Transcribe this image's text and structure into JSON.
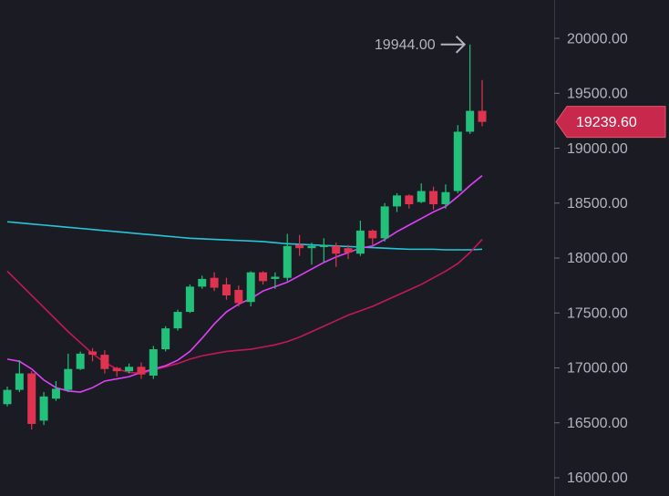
{
  "chart_data": {
    "type": "candlestick",
    "ylim": [
      15834,
      20349
    ],
    "yticks": [
      {
        "value": 20000,
        "label": "20000.00"
      },
      {
        "value": 19500,
        "label": "19500.00"
      },
      {
        "value": 19000,
        "label": "19000.00"
      },
      {
        "value": 18500,
        "label": "18500.00"
      },
      {
        "value": 18000,
        "label": "18000.00"
      },
      {
        "value": 17500,
        "label": "17500.00"
      },
      {
        "value": 17000,
        "label": "17000.00"
      },
      {
        "value": 16500,
        "label": "16500.00"
      },
      {
        "value": 16000,
        "label": "16000.00"
      }
    ],
    "up_color": "#22c07a",
    "down_color": "#e0334f",
    "open": [
      16670,
      16800,
      16950,
      16520,
      16720,
      16800,
      16990,
      17150,
      17120,
      17000,
      16970,
      17010,
      16930,
      17170,
      17360,
      17510,
      17740,
      17820,
      17760,
      17710,
      17600,
      17870,
      17810,
      17820,
      18120,
      18090,
      18100,
      18110,
      18090,
      18040,
      18250,
      18180,
      18470,
      18570,
      18510,
      18610,
      18490,
      18610,
      19150,
      19340
    ],
    "high": [
      16830,
      17070,
      16970,
      16780,
      16880,
      17130,
      17150,
      17180,
      17160,
      17010,
      17040,
      17050,
      17200,
      17380,
      17530,
      17760,
      17840,
      17870,
      17820,
      17750,
      17880,
      17880,
      17870,
      18220,
      18210,
      18140,
      18180,
      18140,
      18120,
      18340,
      18260,
      18500,
      18590,
      18580,
      18680,
      18650,
      18670,
      19210,
      19944,
      19620
    ],
    "low": [
      16650,
      16780,
      16440,
      16480,
      16700,
      16780,
      16980,
      17060,
      16950,
      16920,
      16950,
      16900,
      16900,
      17150,
      17340,
      17500,
      17720,
      17700,
      17620,
      17560,
      17560,
      17760,
      17720,
      17790,
      18020,
      17940,
      17960,
      17920,
      17990,
      18020,
      18110,
      18150,
      18420,
      18450,
      18500,
      18440,
      18450,
      18590,
      19130,
      19200
    ],
    "close": [
      16800,
      16950,
      16490,
      16740,
      16810,
      16990,
      17130,
      17120,
      16990,
      16970,
      17010,
      16940,
      17170,
      17360,
      17510,
      17740,
      17810,
      17730,
      17660,
      17590,
      17870,
      17790,
      17830,
      18110,
      18090,
      18110,
      18120,
      18040,
      18050,
      18250,
      18180,
      18470,
      18570,
      18490,
      18610,
      18490,
      18600,
      19150,
      19340,
      19239.6
    ],
    "lines": [
      {
        "color": "#26c6da",
        "values": [
          18330,
          18320,
          18310,
          18300,
          18290,
          18280,
          18270,
          18260,
          18250,
          18240,
          18230,
          18220,
          18210,
          18200,
          18190,
          18180,
          18175,
          18170,
          18165,
          18160,
          18155,
          18150,
          18140,
          18130,
          18125,
          18120,
          18115,
          18110,
          18105,
          18100,
          18095,
          18090,
          18085,
          18080,
          18080,
          18080,
          18075,
          18075,
          18075,
          18080
        ]
      },
      {
        "color": "#c2185b",
        "values": [
          17880,
          17770,
          17660,
          17550,
          17440,
          17330,
          17230,
          17130,
          17050,
          16990,
          16960,
          16950,
          16980,
          17010,
          17040,
          17080,
          17110,
          17130,
          17150,
          17160,
          17170,
          17190,
          17210,
          17240,
          17280,
          17330,
          17380,
          17430,
          17480,
          17520,
          17560,
          17610,
          17660,
          17710,
          17760,
          17820,
          17880,
          17950,
          18050,
          18170
        ]
      },
      {
        "color": "#e040fb",
        "values": [
          17080,
          17060,
          16990,
          16890,
          16820,
          16790,
          16780,
          16820,
          16880,
          16900,
          16920,
          16960,
          16990,
          17020,
          17070,
          17150,
          17270,
          17400,
          17510,
          17580,
          17630,
          17700,
          17740,
          17780,
          17840,
          17900,
          17960,
          18010,
          18050,
          18090,
          18110,
          18170,
          18240,
          18300,
          18360,
          18420,
          18470,
          18560,
          18660,
          18750
        ]
      }
    ],
    "high_annotation": {
      "value": 19944,
      "label": "19944.00"
    },
    "last_price": {
      "value": 19239.6,
      "label": "19239.60",
      "color": "#c7284c"
    }
  }
}
